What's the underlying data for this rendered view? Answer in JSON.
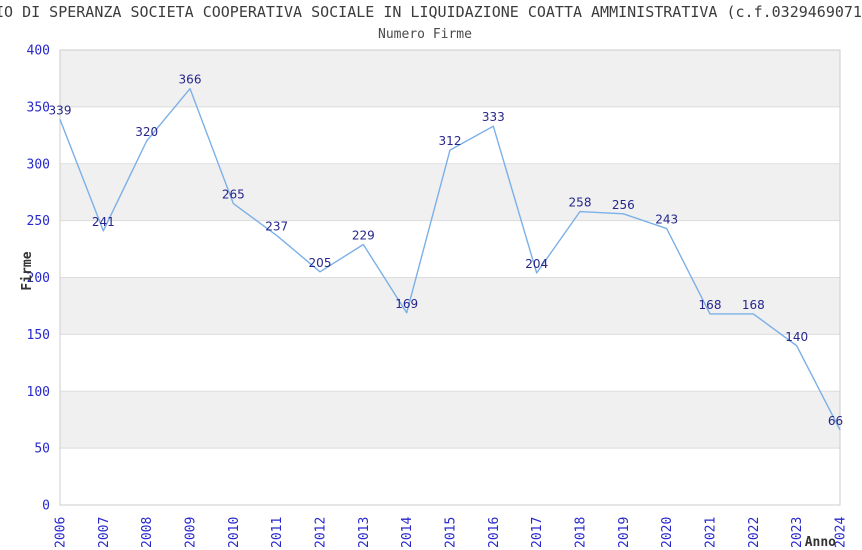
{
  "chart_data": {
    "type": "line",
    "title": "IO DI SPERANZA SOCIETA COOPERATIVA SOCIALE IN LIQUIDAZIONE COATTA AMMINISTRATIVA (c.f.0329469071",
    "subtitle": "Numero Firme",
    "xlabel": "Anno",
    "ylabel": "Firme",
    "categories": [
      "2006",
      "2007",
      "2008",
      "2009",
      "2010",
      "2011",
      "2012",
      "2013",
      "2014",
      "2015",
      "2016",
      "2017",
      "2018",
      "2019",
      "2020",
      "2021",
      "2022",
      "2023",
      "2024"
    ],
    "values": [
      339,
      241,
      320,
      366,
      265,
      237,
      205,
      229,
      169,
      312,
      333,
      204,
      258,
      256,
      243,
      168,
      168,
      140,
      66
    ],
    "ylim": [
      0,
      400
    ],
    "ytick_step": 50,
    "yticks": [
      0,
      50,
      100,
      150,
      200,
      250,
      300,
      350,
      400
    ],
    "grid": "horizontal, alternating shaded bands",
    "legend": "none",
    "colors": {
      "line": "#7cb0e8",
      "point_label": "#26268c",
      "tick_label": "#2828cc",
      "axis_title": "#333333",
      "band_fill": "#f0f0f0",
      "gridline": "#dddddd",
      "plot_border": "#cccccc",
      "title_text": "#3c3c3c"
    }
  }
}
